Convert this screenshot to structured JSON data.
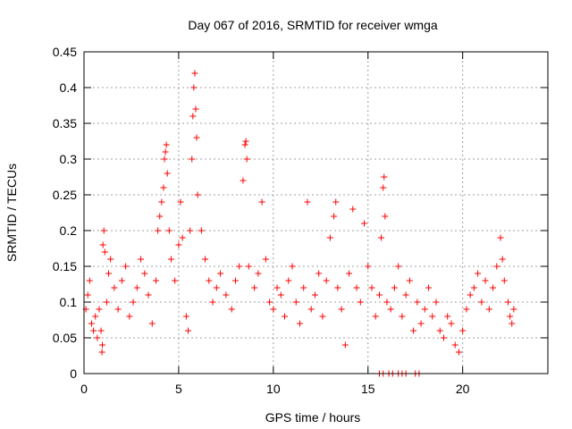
{
  "chart_data": {
    "type": "scatter",
    "title": "Day 067 of 2016, SRMTID for receiver wmga",
    "xlabel": "GPS time / hours",
    "ylabel": "SRMTID / TECUs",
    "xlim": [
      0,
      24.5
    ],
    "ylim": [
      0,
      0.45
    ],
    "xticks": [
      0,
      5,
      10,
      15,
      20
    ],
    "yticks": [
      0,
      0.05,
      0.1,
      0.15,
      0.2,
      0.25,
      0.3,
      0.35,
      0.4,
      0.45
    ],
    "grid": true,
    "marker": "+",
    "color": "#ff0000",
    "series": [
      {
        "name": "SRMTID",
        "points": [
          [
            0.1,
            0.09
          ],
          [
            0.2,
            0.11
          ],
          [
            0.3,
            0.13
          ],
          [
            0.4,
            0.07
          ],
          [
            0.5,
            0.06
          ],
          [
            0.6,
            0.08
          ],
          [
            0.7,
            0.05
          ],
          [
            0.8,
            0.09
          ],
          [
            0.9,
            0.06
          ],
          [
            0.95,
            0.03
          ],
          [
            0.97,
            0.04
          ],
          [
            1.0,
            0.18
          ],
          [
            1.05,
            0.2
          ],
          [
            1.1,
            0.17
          ],
          [
            1.2,
            0.1
          ],
          [
            1.3,
            0.14
          ],
          [
            1.4,
            0.16
          ],
          [
            1.6,
            0.12
          ],
          [
            1.8,
            0.09
          ],
          [
            2.0,
            0.13
          ],
          [
            2.2,
            0.15
          ],
          [
            2.4,
            0.08
          ],
          [
            2.6,
            0.1
          ],
          [
            2.8,
            0.12
          ],
          [
            3.0,
            0.16
          ],
          [
            3.2,
            0.14
          ],
          [
            3.4,
            0.11
          ],
          [
            3.6,
            0.07
          ],
          [
            3.8,
            0.13
          ],
          [
            3.9,
            0.2
          ],
          [
            4.0,
            0.22
          ],
          [
            4.1,
            0.24
          ],
          [
            4.2,
            0.26
          ],
          [
            4.25,
            0.3
          ],
          [
            4.3,
            0.31
          ],
          [
            4.35,
            0.32
          ],
          [
            4.4,
            0.28
          ],
          [
            4.5,
            0.2
          ],
          [
            4.6,
            0.16
          ],
          [
            4.8,
            0.13
          ],
          [
            5.0,
            0.18
          ],
          [
            5.1,
            0.24
          ],
          [
            5.2,
            0.19
          ],
          [
            5.4,
            0.08
          ],
          [
            5.5,
            0.06
          ],
          [
            5.6,
            0.2
          ],
          [
            5.7,
            0.3
          ],
          [
            5.75,
            0.36
          ],
          [
            5.8,
            0.4
          ],
          [
            5.85,
            0.42
          ],
          [
            5.9,
            0.37
          ],
          [
            5.95,
            0.33
          ],
          [
            6.0,
            0.25
          ],
          [
            6.2,
            0.2
          ],
          [
            6.4,
            0.16
          ],
          [
            6.6,
            0.13
          ],
          [
            6.8,
            0.1
          ],
          [
            7.0,
            0.12
          ],
          [
            7.2,
            0.14
          ],
          [
            7.5,
            0.11
          ],
          [
            7.8,
            0.09
          ],
          [
            8.0,
            0.13
          ],
          [
            8.2,
            0.15
          ],
          [
            8.4,
            0.27
          ],
          [
            8.5,
            0.32
          ],
          [
            8.55,
            0.325
          ],
          [
            8.6,
            0.3
          ],
          [
            8.7,
            0.15
          ],
          [
            9.0,
            0.12
          ],
          [
            9.2,
            0.14
          ],
          [
            9.4,
            0.24
          ],
          [
            9.6,
            0.16
          ],
          [
            9.8,
            0.1
          ],
          [
            10.0,
            0.09
          ],
          [
            10.2,
            0.12
          ],
          [
            10.4,
            0.11
          ],
          [
            10.6,
            0.08
          ],
          [
            10.8,
            0.13
          ],
          [
            11.0,
            0.15
          ],
          [
            11.2,
            0.1
          ],
          [
            11.4,
            0.07
          ],
          [
            11.6,
            0.12
          ],
          [
            11.8,
            0.24
          ],
          [
            12.0,
            0.09
          ],
          [
            12.2,
            0.11
          ],
          [
            12.4,
            0.14
          ],
          [
            12.6,
            0.08
          ],
          [
            12.8,
            0.13
          ],
          [
            13.0,
            0.19
          ],
          [
            13.2,
            0.22
          ],
          [
            13.3,
            0.24
          ],
          [
            13.4,
            0.12
          ],
          [
            13.6,
            0.09
          ],
          [
            13.8,
            0.04
          ],
          [
            14.0,
            0.14
          ],
          [
            14.2,
            0.23
          ],
          [
            14.4,
            0.12
          ],
          [
            14.6,
            0.1
          ],
          [
            14.8,
            0.21
          ],
          [
            15.0,
            0.15
          ],
          [
            15.2,
            0.12
          ],
          [
            15.4,
            0.08
          ],
          [
            15.6,
            0.11
          ],
          [
            15.7,
            0.19
          ],
          [
            15.8,
            0.26
          ],
          [
            15.85,
            0.275
          ],
          [
            15.9,
            0.22
          ],
          [
            16.0,
            0.1
          ],
          [
            16.2,
            0.09
          ],
          [
            16.4,
            0.12
          ],
          [
            16.6,
            0.15
          ],
          [
            16.8,
            0.08
          ],
          [
            17.0,
            0.11
          ],
          [
            17.2,
            0.13
          ],
          [
            17.4,
            0.06
          ],
          [
            17.6,
            0.1
          ],
          [
            17.8,
            0.07
          ],
          [
            18.0,
            0.09
          ],
          [
            18.2,
            0.12
          ],
          [
            18.4,
            0.08
          ],
          [
            18.6,
            0.1
          ],
          [
            18.8,
            0.06
          ],
          [
            19.0,
            0.05
          ],
          [
            19.2,
            0.08
          ],
          [
            19.4,
            0.07
          ],
          [
            19.6,
            0.04
          ],
          [
            19.8,
            0.03
          ],
          [
            20.0,
            0.06
          ],
          [
            20.2,
            0.09
          ],
          [
            20.4,
            0.11
          ],
          [
            20.6,
            0.12
          ],
          [
            20.8,
            0.14
          ],
          [
            21.0,
            0.1
          ],
          [
            21.2,
            0.13
          ],
          [
            21.4,
            0.09
          ],
          [
            21.6,
            0.12
          ],
          [
            21.8,
            0.15
          ],
          [
            22.0,
            0.19
          ],
          [
            22.1,
            0.16
          ],
          [
            22.2,
            0.13
          ],
          [
            22.4,
            0.1
          ],
          [
            22.5,
            0.08
          ],
          [
            22.6,
            0.07
          ],
          [
            22.7,
            0.09
          ],
          [
            15.6,
            0
          ],
          [
            15.8,
            0
          ],
          [
            16.1,
            0
          ],
          [
            16.3,
            0
          ],
          [
            16.6,
            0
          ],
          [
            16.8,
            0
          ],
          [
            17.0,
            0
          ],
          [
            17.5,
            0
          ],
          [
            17.7,
            0
          ]
        ]
      }
    ]
  }
}
